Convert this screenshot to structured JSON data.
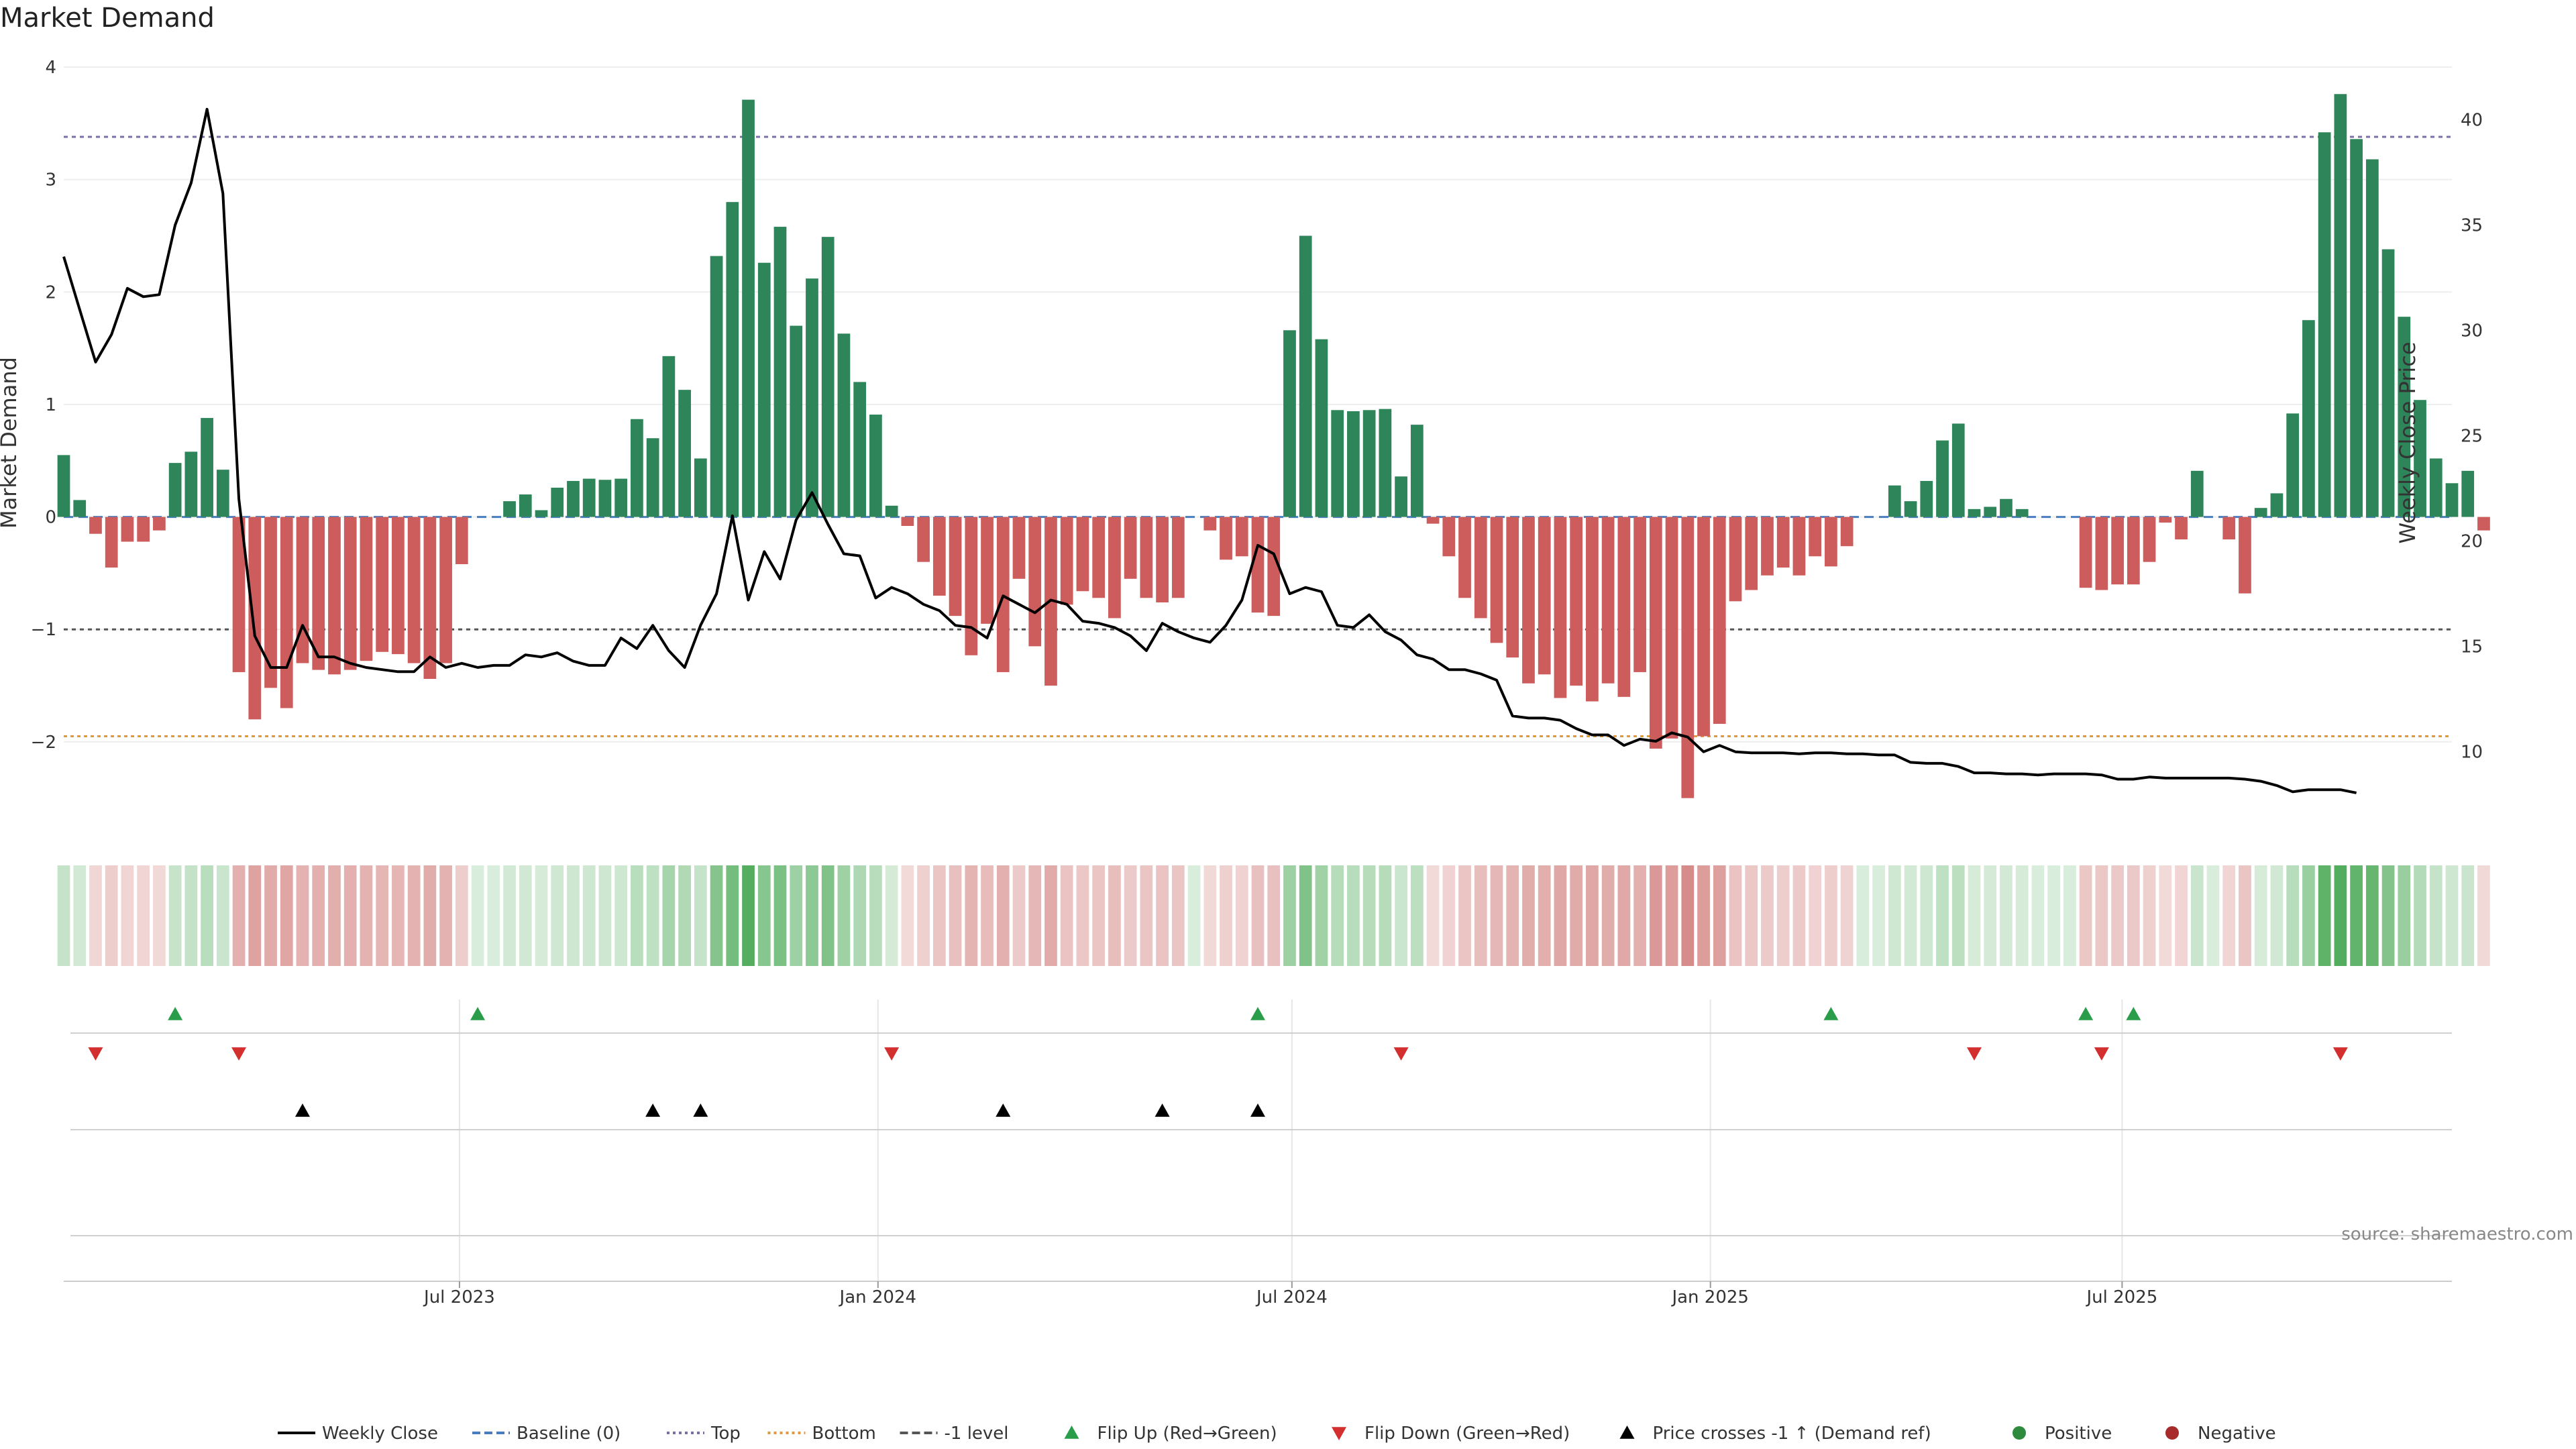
{
  "chart_data": {
    "type": "bar",
    "title": "Market Demand",
    "ylabel": "Market Demand",
    "y2label": "Weekly Close Price",
    "ylim": [
      -2.8,
      4
    ],
    "y2lim": [
      6.2,
      42.5
    ],
    "yticks": [
      "−2",
      "−1",
      "0",
      "1",
      "2",
      "3",
      "4"
    ],
    "yticks_values": [
      -2,
      -1,
      0,
      1,
      2,
      3,
      4
    ],
    "y2ticks": [
      "10",
      "15",
      "20",
      "25",
      "30",
      "35",
      "40"
    ],
    "y2ticks_values": [
      10,
      15,
      20,
      25,
      30,
      35,
      40
    ],
    "x_start": "2023-01-08",
    "x_end": "2025-11-23",
    "x_step_days": 7,
    "xticks": [
      {
        "label": "Jul 2023",
        "date": "2023-07-01"
      },
      {
        "label": "Jan 2024",
        "date": "2024-01-01"
      },
      {
        "label": "Jul 2024",
        "date": "2024-07-01"
      },
      {
        "label": "Jan 2025",
        "date": "2025-01-01"
      },
      {
        "label": "Jul 2025",
        "date": "2025-07-01"
      }
    ],
    "reference_lines": {
      "baseline": 0,
      "top": 3.38,
      "bottom": -1.95,
      "minus_one": -1
    },
    "grid": true,
    "legend_position": "bottom",
    "series": [
      {
        "name": "Market Demand",
        "kind": "bar",
        "values": [
          0.55,
          0.15,
          -0.15,
          -0.45,
          -0.22,
          -0.22,
          -0.12,
          0.48,
          0.58,
          0.88,
          0.42,
          -1.38,
          -1.8,
          -1.52,
          -1.7,
          -1.3,
          -1.36,
          -1.4,
          -1.36,
          -1.28,
          -1.2,
          -1.22,
          -1.3,
          -1.44,
          -1.3,
          -0.42,
          0.0,
          0.0,
          0.14,
          0.2,
          0.06,
          0.26,
          0.32,
          0.34,
          0.33,
          0.34,
          0.87,
          0.7,
          1.43,
          1.13,
          0.52,
          2.32,
          2.8,
          3.71,
          2.26,
          2.58,
          1.7,
          2.12,
          2.49,
          1.63,
          1.2,
          0.91,
          0.1,
          -0.08,
          -0.4,
          -0.7,
          -0.88,
          -1.23,
          -0.95,
          -1.38,
          -0.55,
          -1.15,
          -1.5,
          -0.78,
          -0.66,
          -0.72,
          -0.9,
          -0.55,
          -0.72,
          -0.76,
          -0.72,
          0.0,
          -0.12,
          -0.38,
          -0.35,
          -0.85,
          -0.88,
          1.66,
          2.5,
          1.58,
          0.95,
          0.94,
          0.95,
          0.96,
          0.36,
          0.82,
          -0.06,
          -0.35,
          -0.72,
          -0.9,
          -1.12,
          -1.25,
          -1.48,
          -1.4,
          -1.61,
          -1.5,
          -1.64,
          -1.48,
          -1.6,
          -1.38,
          -2.06,
          -1.97,
          -2.5,
          -1.95,
          -1.84,
          -0.75,
          -0.65,
          -0.52,
          -0.45,
          -0.52,
          -0.35,
          -0.44,
          -0.26,
          0.0,
          0.0,
          0.28,
          0.14,
          0.32,
          0.68,
          0.83,
          0.07,
          0.09,
          0.16,
          0.07,
          0.0,
          0.0,
          0.0,
          -0.63,
          -0.65,
          -0.6,
          -0.6,
          -0.4,
          -0.05,
          -0.2,
          0.41,
          0.0,
          -0.2,
          -0.68,
          0.08,
          0.21,
          0.92,
          1.75,
          3.42,
          3.76,
          3.36,
          3.18,
          2.38,
          1.78,
          1.04,
          0.52,
          0.3,
          0.41,
          -0.12
        ]
      },
      {
        "name": "Weekly Close",
        "kind": "line",
        "values": [
          33.5,
          31.0,
          28.5,
          29.8,
          32.0,
          31.6,
          31.7,
          35.0,
          37.0,
          40.5,
          36.5,
          22.0,
          15.5,
          14.0,
          14.0,
          16.0,
          14.5,
          14.5,
          14.2,
          14.0,
          13.9,
          13.8,
          13.8,
          14.5,
          14.0,
          14.2,
          14.0,
          14.1,
          14.1,
          14.6,
          14.5,
          14.7,
          14.3,
          14.1,
          14.1,
          15.4,
          14.9,
          16.0,
          14.8,
          14.0,
          16.0,
          17.5,
          21.2,
          17.2,
          19.5,
          18.2,
          21.0,
          22.3,
          20.8,
          19.4,
          19.3,
          17.3,
          17.8,
          17.5,
          17.0,
          16.7,
          16.0,
          15.9,
          15.4,
          17.4,
          17.0,
          16.6,
          17.2,
          17.0,
          16.2,
          16.1,
          15.9,
          15.5,
          14.8,
          16.1,
          15.7,
          15.4,
          15.2,
          16.0,
          17.2,
          19.8,
          19.4,
          17.5,
          17.8,
          17.6,
          16.0,
          15.9,
          16.5,
          15.7,
          15.3,
          14.6,
          14.4,
          13.9,
          13.9,
          13.7,
          13.4,
          11.7,
          11.6,
          11.6,
          11.5,
          11.1,
          10.8,
          10.8,
          10.3,
          10.6,
          10.5,
          10.9,
          10.7,
          10.0,
          10.3,
          10.0,
          9.95,
          9.95,
          9.95,
          9.9,
          9.95,
          9.95,
          9.9,
          9.9,
          9.85,
          9.85,
          9.5,
          9.45,
          9.45,
          9.3,
          9.0,
          9.0,
          8.95,
          8.95,
          8.9,
          8.95,
          8.95,
          8.95,
          8.9,
          8.7,
          8.7,
          8.8,
          8.75,
          8.75,
          8.75,
          8.75,
          8.75,
          8.7,
          8.6,
          8.4,
          8.1,
          8.2,
          8.2,
          8.2,
          8.05
        ]
      }
    ],
    "flip_up_weeks": [
      7,
      26,
      75,
      111,
      127,
      130
    ],
    "flip_down_weeks": [
      2,
      11,
      52,
      84,
      120,
      128,
      143
    ],
    "price_cross_weeks": [
      15,
      37,
      40,
      59,
      69,
      75
    ],
    "legend": [
      {
        "label": "Weekly Close",
        "marker": "line-solid",
        "color": "#000000"
      },
      {
        "label": "Baseline (0)",
        "marker": "line-dashed",
        "color": "#4a7dbf"
      },
      {
        "label": "Top",
        "marker": "line-dotted",
        "color": "#7b6fa8"
      },
      {
        "label": "Bottom",
        "marker": "line-dotted",
        "color": "#e09a3c"
      },
      {
        "label": "-1 level",
        "marker": "line-dashed",
        "color": "#555555"
      },
      {
        "label": "Flip Up (Red→Green)",
        "marker": "triangle-up",
        "color": "#2a9d4a"
      },
      {
        "label": "Flip Down (Green→Red)",
        "marker": "triangle-down",
        "color": "#d32f2f"
      },
      {
        "label": "Price crosses -1 ↑ (Demand ref)",
        "marker": "triangle-up",
        "color": "#000000"
      },
      {
        "label": "Positive",
        "marker": "circle",
        "color": "#2e8b3e"
      },
      {
        "label": "Negative",
        "marker": "circle",
        "color": "#a82a2a"
      }
    ]
  },
  "colors": {
    "positive_bar": "#2e855a",
    "negative_bar": "#cd5c5c",
    "heat_positive": "#3ea34a",
    "heat_negative": "#c0504d",
    "flip_up": "#2a9d4a",
    "flip_down": "#d32f2f",
    "price_cross": "#000000"
  },
  "source": "source: sharemaestro.com"
}
